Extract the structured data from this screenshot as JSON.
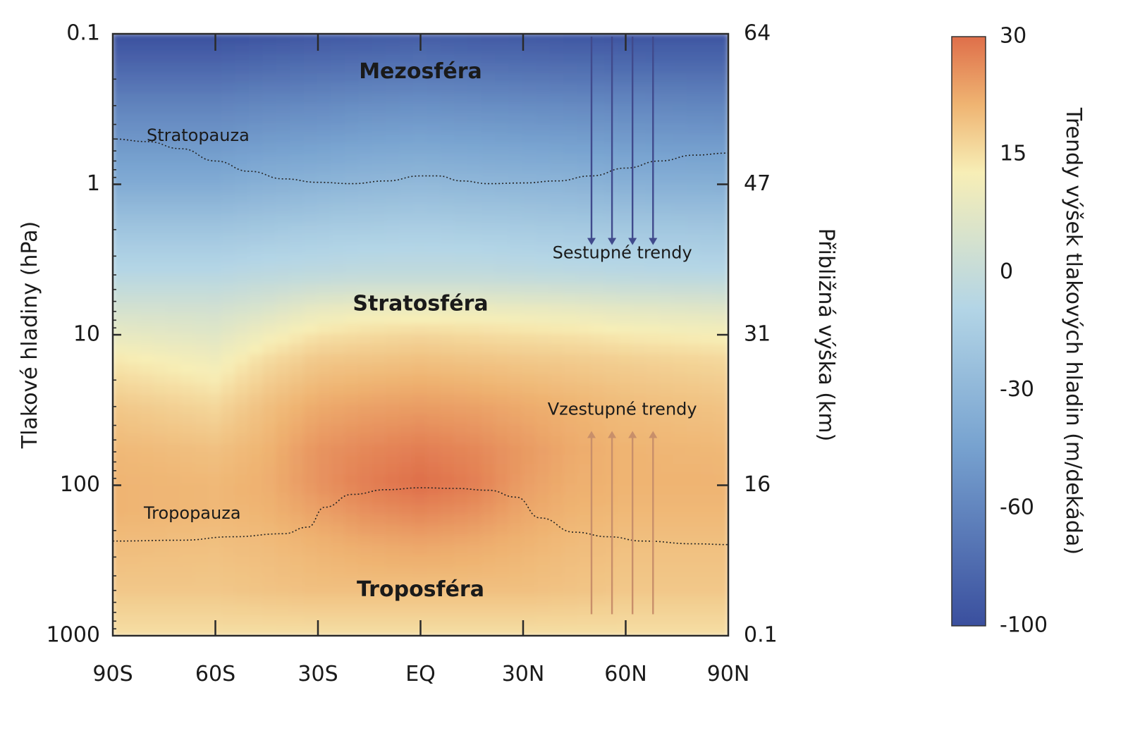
{
  "chart_data": {
    "type": "heatmap",
    "title": "",
    "xlabel": "",
    "ylabel": "Tlakové hladiny (hPa)",
    "y2label": "Přibližná výška (km)",
    "y_scale": "log",
    "y_inverted": true,
    "ylim": [
      1000,
      0.1
    ],
    "x_ticks": [
      "90S",
      "60S",
      "30S",
      "EQ",
      "30N",
      "60N",
      "90N"
    ],
    "x_values": [
      -90,
      -60,
      -30,
      0,
      30,
      60,
      90
    ],
    "y_ticks": [
      "0.1",
      "1",
      "10",
      "100",
      "1000"
    ],
    "y_values": [
      0.1,
      1,
      10,
      100,
      1000
    ],
    "y2_ticks": [
      "64",
      "47",
      "31",
      "16",
      "0.1"
    ],
    "y2_values": [
      0.1,
      1,
      10,
      100,
      1000
    ],
    "colorbar": {
      "label": "Trendy výšek tlakových hladin (m/dekáda)",
      "ticks": [
        "30",
        "15",
        "0",
        "-30",
        "-60",
        "-100"
      ],
      "values": [
        30,
        15,
        0,
        -30,
        -60,
        -100
      ],
      "colors": [
        "#df6f4a",
        "#efb472",
        "#f7eeb6",
        "#b3d5e6",
        "#78a3d0",
        "#3a4f9e"
      ]
    },
    "regions": [
      {
        "name": "Mezosféra",
        "lat": 0,
        "p": 0.18
      },
      {
        "name": "Stratosféra",
        "lat": 0,
        "p": 6.3
      },
      {
        "name": "Troposféra",
        "lat": 0,
        "p": 500
      }
    ],
    "boundaries": [
      {
        "name": "Stratopauza",
        "points": [
          [
            -90,
            0.5
          ],
          [
            -80,
            0.52
          ],
          [
            -70,
            0.58
          ],
          [
            -60,
            0.7
          ],
          [
            -50,
            0.82
          ],
          [
            -40,
            0.92
          ],
          [
            -30,
            0.97
          ],
          [
            -20,
            0.99
          ],
          [
            -10,
            0.95
          ],
          [
            0,
            0.88
          ],
          [
            5,
            0.88
          ],
          [
            12,
            0.95
          ],
          [
            20,
            0.99
          ],
          [
            30,
            0.98
          ],
          [
            40,
            0.95
          ],
          [
            50,
            0.88
          ],
          [
            60,
            0.78
          ],
          [
            70,
            0.7
          ],
          [
            80,
            0.64
          ],
          [
            90,
            0.62
          ]
        ]
      },
      {
        "name": "Tropopauza",
        "points": [
          [
            -90,
            235
          ],
          [
            -70,
            232
          ],
          [
            -55,
            220
          ],
          [
            -40,
            210
          ],
          [
            -33,
            190
          ],
          [
            -28,
            140
          ],
          [
            -20,
            115
          ],
          [
            -10,
            107
          ],
          [
            0,
            104
          ],
          [
            10,
            105
          ],
          [
            20,
            108
          ],
          [
            28,
            120
          ],
          [
            35,
            165
          ],
          [
            45,
            205
          ],
          [
            55,
            220
          ],
          [
            65,
            235
          ],
          [
            80,
            245
          ],
          [
            90,
            248
          ]
        ]
      }
    ],
    "annotations": [
      {
        "text": "Sestupné trendy",
        "direction": "down",
        "arrow_lats": [
          50,
          56,
          62,
          68
        ],
        "color": "#404a8c"
      },
      {
        "text": "Vzestupné trendy",
        "direction": "up",
        "arrow_lats": [
          50,
          56,
          62,
          68
        ],
        "color": "#c88f6a"
      }
    ],
    "trend_grid": {
      "lat": [
        -90,
        -60,
        -45,
        -30,
        -15,
        0,
        15,
        30,
        45,
        60,
        90
      ],
      "p": [
        0.1,
        0.3,
        1,
        2,
        4,
        7,
        10,
        15,
        30,
        60,
        100,
        150,
        250,
        500,
        1000
      ],
      "values": [
        [
          -100,
          -100,
          -98,
          -96,
          -95,
          -94,
          -95,
          -96,
          -97,
          -98,
          -98
        ],
        [
          -75,
          -75,
          -73,
          -72,
          -70,
          -69,
          -70,
          -71,
          -72,
          -73,
          -74
        ],
        [
          -55,
          -55,
          -52,
          -50,
          -48,
          -47,
          -48,
          -49,
          -50,
          -52,
          -53
        ],
        [
          -40,
          -40,
          -38,
          -36,
          -35,
          -34,
          -35,
          -36,
          -37,
          -38,
          -39
        ],
        [
          -28,
          -28,
          -26,
          -25,
          -24,
          -24,
          -24,
          -25,
          -26,
          -27,
          -28
        ],
        [
          -15,
          -16,
          -12,
          -6,
          -4,
          -4,
          -4,
          -5,
          -6,
          -8,
          -10
        ],
        [
          -7,
          -10,
          -3,
          3,
          5,
          6,
          5,
          4,
          3,
          1,
          -1
        ],
        [
          2,
          -3,
          5,
          10,
          11,
          12,
          11,
          10,
          9,
          8,
          6
        ],
        [
          10,
          6,
          12,
          17,
          19,
          20,
          19,
          17,
          15,
          13,
          11
        ],
        [
          14,
          12,
          15,
          22,
          25,
          27,
          25,
          21,
          17,
          15,
          14
        ],
        [
          15,
          14,
          16,
          22,
          27,
          30,
          27,
          20,
          16,
          15,
          15
        ],
        [
          15,
          14,
          15,
          19,
          23,
          25,
          23,
          18,
          15,
          14,
          14
        ],
        [
          13,
          12,
          13,
          15,
          17,
          18,
          17,
          15,
          13,
          12,
          12
        ],
        [
          10,
          10,
          11,
          12,
          12,
          12,
          12,
          12,
          11,
          10,
          10
        ],
        [
          4,
          4,
          4,
          4,
          4,
          4,
          4,
          4,
          4,
          4,
          4
        ]
      ]
    }
  }
}
